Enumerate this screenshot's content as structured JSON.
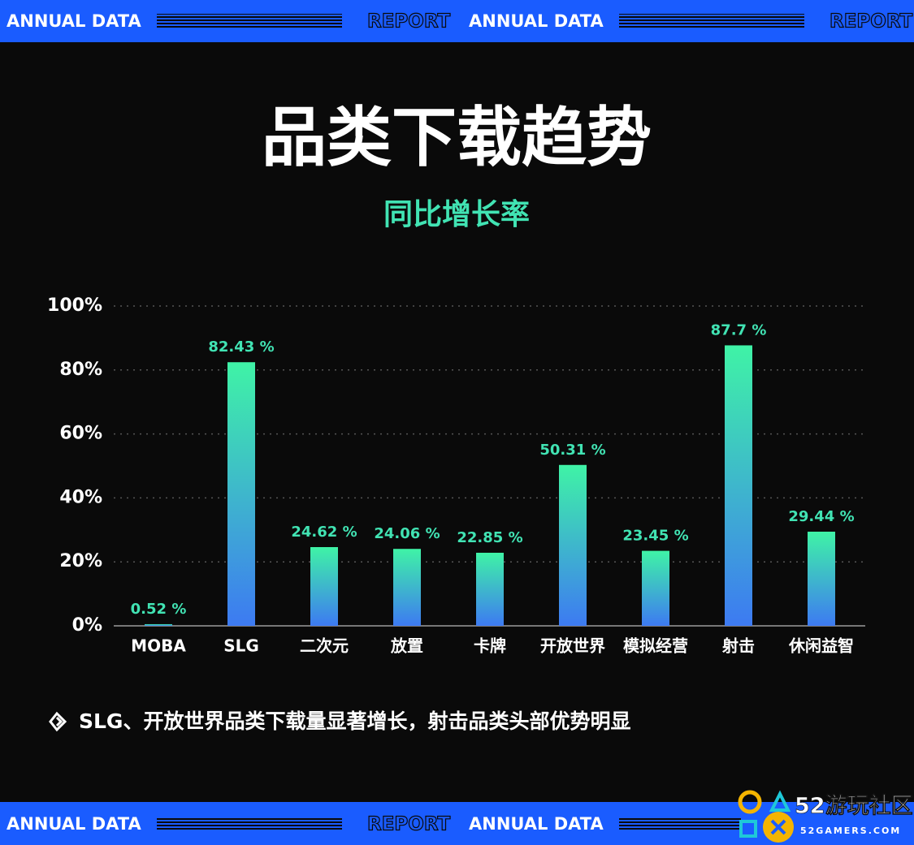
{
  "banner": {
    "left": "ANNUAL DATA",
    "right": "REPORT"
  },
  "watermark": {
    "name": "52游玩社区",
    "site": "52GAMERS.COM"
  },
  "chart_data": {
    "type": "bar",
    "title": "品类下载趋势",
    "subtitle": "同比增长率",
    "categories": [
      "MOBA",
      "SLG",
      "二次元",
      "放置",
      "卡牌",
      "开放世界",
      "模拟经营",
      "射击",
      "休闲益智"
    ],
    "values": [
      0.52,
      82.43,
      24.62,
      24.06,
      22.85,
      50.31,
      23.45,
      87.7,
      29.44
    ],
    "value_labels": [
      "0.52 %",
      "82.43 %",
      "24.62 %",
      "24.06 %",
      "22.85 %",
      "50.31 %",
      "23.45 %",
      "87.7 %",
      "29.44 %"
    ],
    "color": [
      "#3ff3a6",
      "#3d7af2"
    ],
    "label_color": "#41e3b3",
    "ylim": [
      0,
      100
    ],
    "yticks": [
      {
        "value": 0,
        "label": "0%"
      },
      {
        "value": 20,
        "label": "20%"
      },
      {
        "value": 40,
        "label": "40%"
      },
      {
        "value": 60,
        "label": "60%"
      },
      {
        "value": 80,
        "label": "80%"
      },
      {
        "value": 100,
        "label": "100%"
      }
    ],
    "grid": true,
    "annotation": "SLG、开放世界品类下载量显著增长，射击品类头部优势明显"
  }
}
